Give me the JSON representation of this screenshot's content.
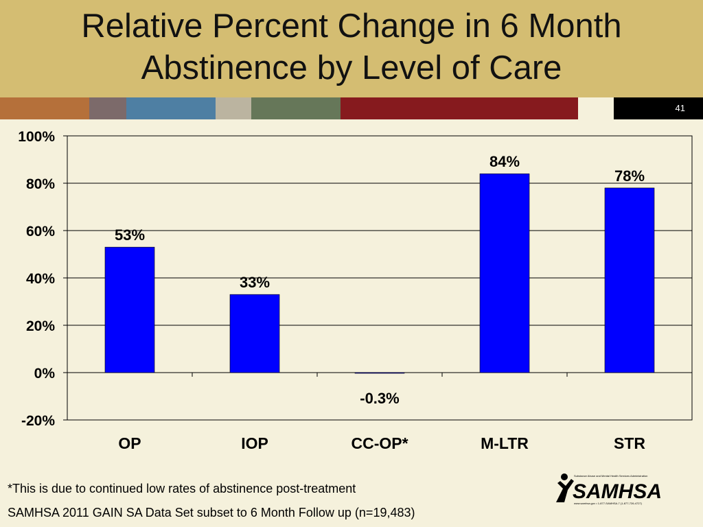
{
  "slide": {
    "title_line1": "Relative Percent Change in 6 Month",
    "title_line2": "Abstinence by Level of Care",
    "slide_number": "41",
    "footnote": "*This is due to continued low rates of abstinence post-treatment",
    "source": "SAMHSA 2011 GAIN SA Data Set subset to 6 Month Follow up (n=19,483)",
    "logo_text": "SAMHSA",
    "logo_tagline": "Substance Abuse and Mental Health Services Administration",
    "logo_url_line": "www.samhsa.gov • 1-877-SAMHSA-7 (1-877-726-4727)"
  },
  "colors": {
    "header": "#d4bd72",
    "background": "#f5f1dc",
    "bar": "#0000ff",
    "stripe": [
      "#b5703a",
      "#7c6a6a",
      "#4e7fa3",
      "#bbb4a0",
      "#667759",
      "#f5f1dc",
      "#861a1e",
      "#f5f1dc",
      "#000000"
    ]
  },
  "chart_data": {
    "type": "bar",
    "categories": [
      "OP",
      "IOP",
      "CC-OP*",
      "M-LTR",
      "STR"
    ],
    "values": [
      53,
      33,
      -0.3,
      84,
      78
    ],
    "data_labels": [
      "53%",
      "33%",
      "-0.3%",
      "84%",
      "78%"
    ],
    "y_ticks": [
      "-20%",
      "0%",
      "20%",
      "40%",
      "60%",
      "80%",
      "100%"
    ],
    "ylim": [
      -20,
      100
    ],
    "title": "",
    "xlabel": "",
    "ylabel": "",
    "grid": true,
    "legend": "none"
  }
}
